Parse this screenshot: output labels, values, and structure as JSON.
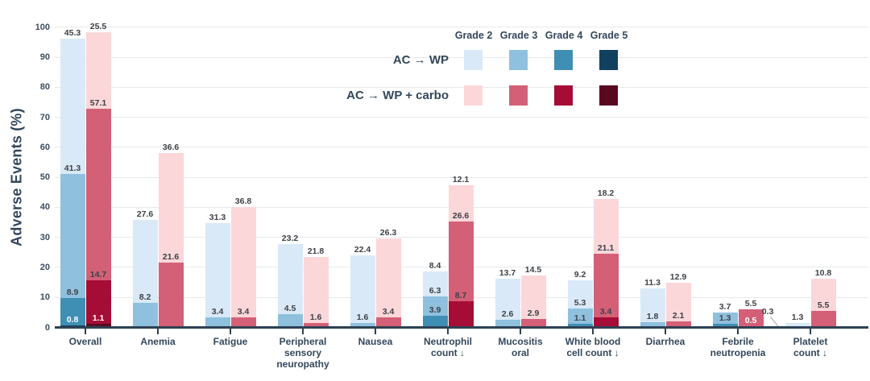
{
  "y_axis": {
    "title": "Adverse Events (%)",
    "ticks": [
      0,
      10,
      20,
      30,
      40,
      50,
      60,
      70,
      80,
      90,
      100
    ]
  },
  "legend": {
    "grade_headers": [
      "Grade 2",
      "Grade 3",
      "Grade 4",
      "Grade 5"
    ],
    "rows": [
      {
        "label": "AC → WP",
        "arm": "wp"
      },
      {
        "label": "AC → WP + carbo",
        "arm": "carbo"
      }
    ]
  },
  "colors": {
    "wp": {
      "g2": "#d9e9f7",
      "g3": "#8fc0de",
      "g4": "#3f8fb5",
      "g5": "#11405f"
    },
    "carbo": {
      "g2": "#fbd7da",
      "g3": "#d36077",
      "g4": "#a50d36",
      "g5": "#570a1f"
    },
    "text_dark": "#33475b",
    "value_label": "#3e4247",
    "gridline": "#e7e9ea",
    "axis_line": "#2e4154"
  },
  "chart_data": {
    "type": "bar",
    "stacked": true,
    "title": "",
    "xlabel": "",
    "ylabel": "Adverse Events (%)",
    "ylim": [
      0,
      100
    ],
    "grid": true,
    "legend_position": "top-right",
    "arms": [
      {
        "key": "wp",
        "name": "AC → WP"
      },
      {
        "key": "carbo",
        "name": "AC → WP + carbo"
      }
    ],
    "grade_order_bottom_to_top": [
      "g5",
      "g4",
      "g3",
      "g2"
    ],
    "grade_names": {
      "g2": "Grade 2",
      "g3": "Grade 3",
      "g4": "Grade 4",
      "g5": "Grade 5"
    },
    "categories": [
      {
        "label_lines": [
          "Overall"
        ],
        "wp": {
          "g2": 45.3,
          "g3": 41.3,
          "g4": 8.9,
          "g5": 0.8
        },
        "carbo": {
          "g2": 25.5,
          "g3": 57.1,
          "g4": 14.7,
          "g5": 1.1
        },
        "white_labels": {
          "wp": [
            "g5"
          ],
          "carbo": [
            "g5"
          ]
        }
      },
      {
        "label_lines": [
          "Anemia"
        ],
        "wp": {
          "g2": 27.6,
          "g3": 8.2
        },
        "carbo": {
          "g2": 36.6,
          "g3": 21.6
        }
      },
      {
        "label_lines": [
          "Fatigue"
        ],
        "wp": {
          "g2": 31.3,
          "g3": 3.4
        },
        "carbo": {
          "g2": 36.8,
          "g3": 3.4
        }
      },
      {
        "label_lines": [
          "Peripheral",
          "sensory",
          "neuropathy"
        ],
        "wp": {
          "g2": 23.2,
          "g3": 4.5
        },
        "carbo": {
          "g2": 21.8,
          "g3": 1.6
        }
      },
      {
        "label_lines": [
          "Nausea"
        ],
        "wp": {
          "g2": 22.4,
          "g3": 1.6
        },
        "carbo": {
          "g2": 26.3,
          "g3": 3.4
        }
      },
      {
        "label_lines": [
          "Neutrophil",
          "count ↓"
        ],
        "wp": {
          "g2": 8.4,
          "g3": 6.3,
          "g4": 3.9
        },
        "carbo": {
          "g2": 12.1,
          "g3": 26.6,
          "g4": 8.7
        }
      },
      {
        "label_lines": [
          "Mucositis",
          "oral"
        ],
        "wp": {
          "g2": 13.7,
          "g3": 2.6
        },
        "carbo": {
          "g2": 14.5,
          "g3": 2.9
        }
      },
      {
        "label_lines": [
          "White blood",
          "cell count ↓"
        ],
        "wp": {
          "g2": 9.2,
          "g3": 5.3,
          "g4": 1.1
        },
        "carbo": {
          "g2": 18.2,
          "g3": 21.1,
          "g4": 3.4
        }
      },
      {
        "label_lines": [
          "Diarrhea"
        ],
        "wp": {
          "g2": 11.3,
          "g3": 1.8
        },
        "carbo": {
          "g2": 12.9,
          "g3": 2.1
        }
      },
      {
        "label_lines": [
          "Febrile",
          "neutropenia"
        ],
        "wp": {
          "g3": 3.7,
          "g4": 1.3
        },
        "carbo": {
          "g3": 5.5,
          "g4": 0.5
        },
        "white_labels": {
          "carbo": [
            "g4"
          ]
        }
      },
      {
        "label_lines": [
          "Platelet",
          "count ↓"
        ],
        "wp": {
          "g2": 1.3,
          "g3": 0.3
        },
        "carbo": {
          "g2": 10.8,
          "g3": 5.5
        },
        "callout_labels": {
          "wp": [
            "g3"
          ]
        }
      }
    ]
  }
}
